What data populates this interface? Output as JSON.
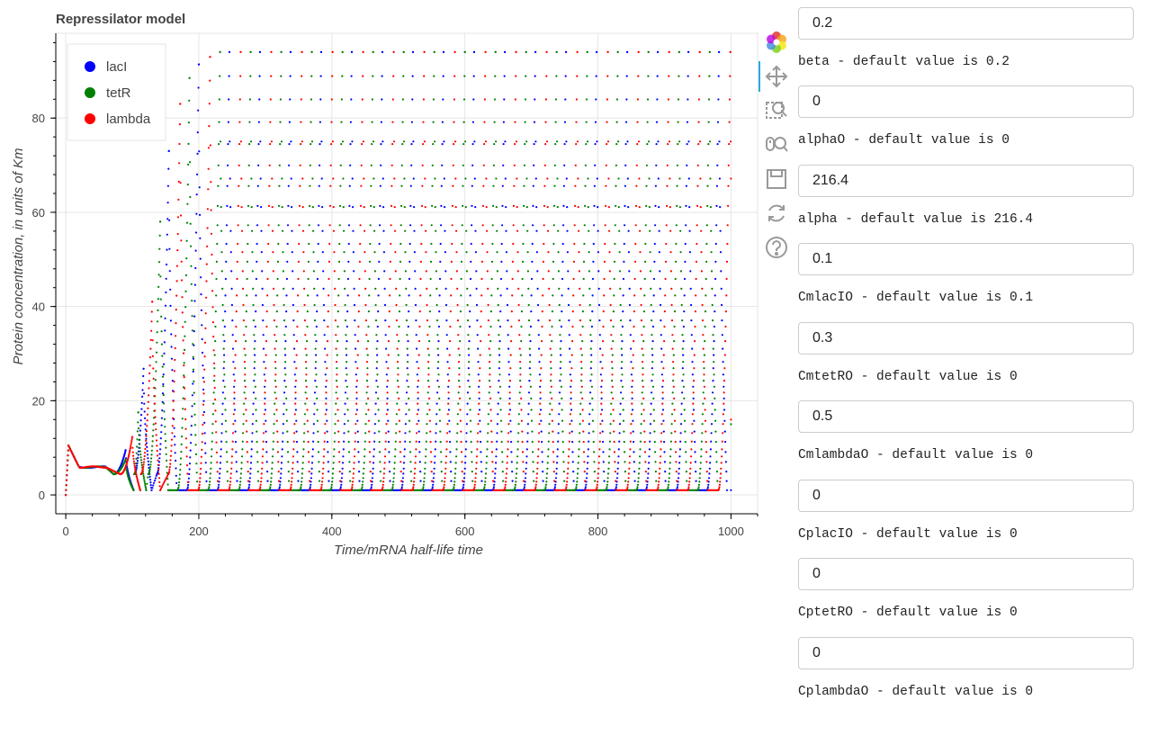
{
  "chart_data": {
    "type": "scatter",
    "title": "Repressilator model",
    "xlabel": "Time/mRNA half-life time",
    "ylabel": "Protein concentration, in units of Km",
    "xlim": [
      -15,
      1040
    ],
    "ylim": [
      -4,
      98
    ],
    "x_ticks": [
      0,
      200,
      400,
      600,
      800,
      1000
    ],
    "y_ticks": [
      0,
      20,
      40,
      60,
      80
    ],
    "grid": true,
    "legend_position": "top-left",
    "series": [
      {
        "name": "lacI",
        "color": "#0000ff",
        "x": [
          0,
          4,
          20,
          60,
          90,
          117,
          155,
          200,
          245,
          300,
          350,
          400,
          450,
          500,
          550,
          600,
          650,
          700,
          750,
          800,
          850,
          900,
          950,
          970,
          1000
        ],
        "y": [
          0,
          10.5,
          5.8,
          5.9,
          9.5,
          26.8,
          73,
          91.4,
          93.8,
          94,
          94,
          94,
          94,
          94,
          94,
          94,
          94,
          94,
          94,
          94,
          94,
          94,
          94,
          94,
          1
        ]
      },
      {
        "name": "tetR",
        "color": "#008000",
        "x": [
          0,
          4,
          20,
          60,
          90,
          109,
          142,
          186,
          230,
          280,
          330,
          380,
          430,
          480,
          530,
          580,
          630,
          680,
          730,
          780,
          830,
          880,
          930,
          985,
          1000
        ],
        "y": [
          0,
          10.5,
          5.8,
          5.9,
          7.5,
          17.5,
          58,
          88.5,
          93.5,
          94,
          94,
          94,
          94,
          94,
          94,
          94,
          94,
          94,
          94,
          94,
          94,
          94,
          94,
          94,
          15
        ]
      },
      {
        "name": "lambda",
        "color": "#ff0000",
        "x": [
          0,
          4,
          20,
          60,
          100,
          130,
          172,
          217,
          265,
          315,
          365,
          415,
          465,
          515,
          565,
          615,
          665,
          715,
          765,
          815,
          865,
          915,
          965,
          992,
          1000
        ],
        "y": [
          0,
          10.5,
          5.8,
          5.9,
          12.3,
          41,
          83,
          93,
          94,
          94,
          94,
          94,
          94,
          94,
          94,
          94,
          94,
          94,
          94,
          94,
          94,
          94,
          94,
          94,
          16
        ]
      }
    ]
  },
  "toolbar": {
    "tools": [
      "bokeh-logo-icon",
      "pan-icon",
      "box-zoom-icon",
      "wheel-zoom-icon",
      "save-icon",
      "reset-icon",
      "help-icon"
    ]
  },
  "params": [
    {
      "id": "beta",
      "value": "0.2",
      "label": "beta - default value is 0.2"
    },
    {
      "id": "alpha0",
      "value": "0",
      "label": "alphaO - default value is 0"
    },
    {
      "id": "alpha",
      "value": "216.4",
      "label": "alpha - default value is 216.4"
    },
    {
      "id": "cmlaci0",
      "value": "0.1",
      "label": "CmlacIO - default value is 0.1"
    },
    {
      "id": "cmtetr0",
      "value": "0.3",
      "label": "CmtetRO - default value is 0"
    },
    {
      "id": "cmlambda0",
      "value": "0.5",
      "label": "CmlambdaO - default value is 0"
    },
    {
      "id": "cplaci0",
      "value": "0",
      "label": "CplacIO - default value is 0"
    },
    {
      "id": "cptetr0",
      "value": "0",
      "label": "CptetRO - default value is 0"
    },
    {
      "id": "cplambda0",
      "value": "0",
      "label": "CplambdaO - default value is 0"
    }
  ]
}
